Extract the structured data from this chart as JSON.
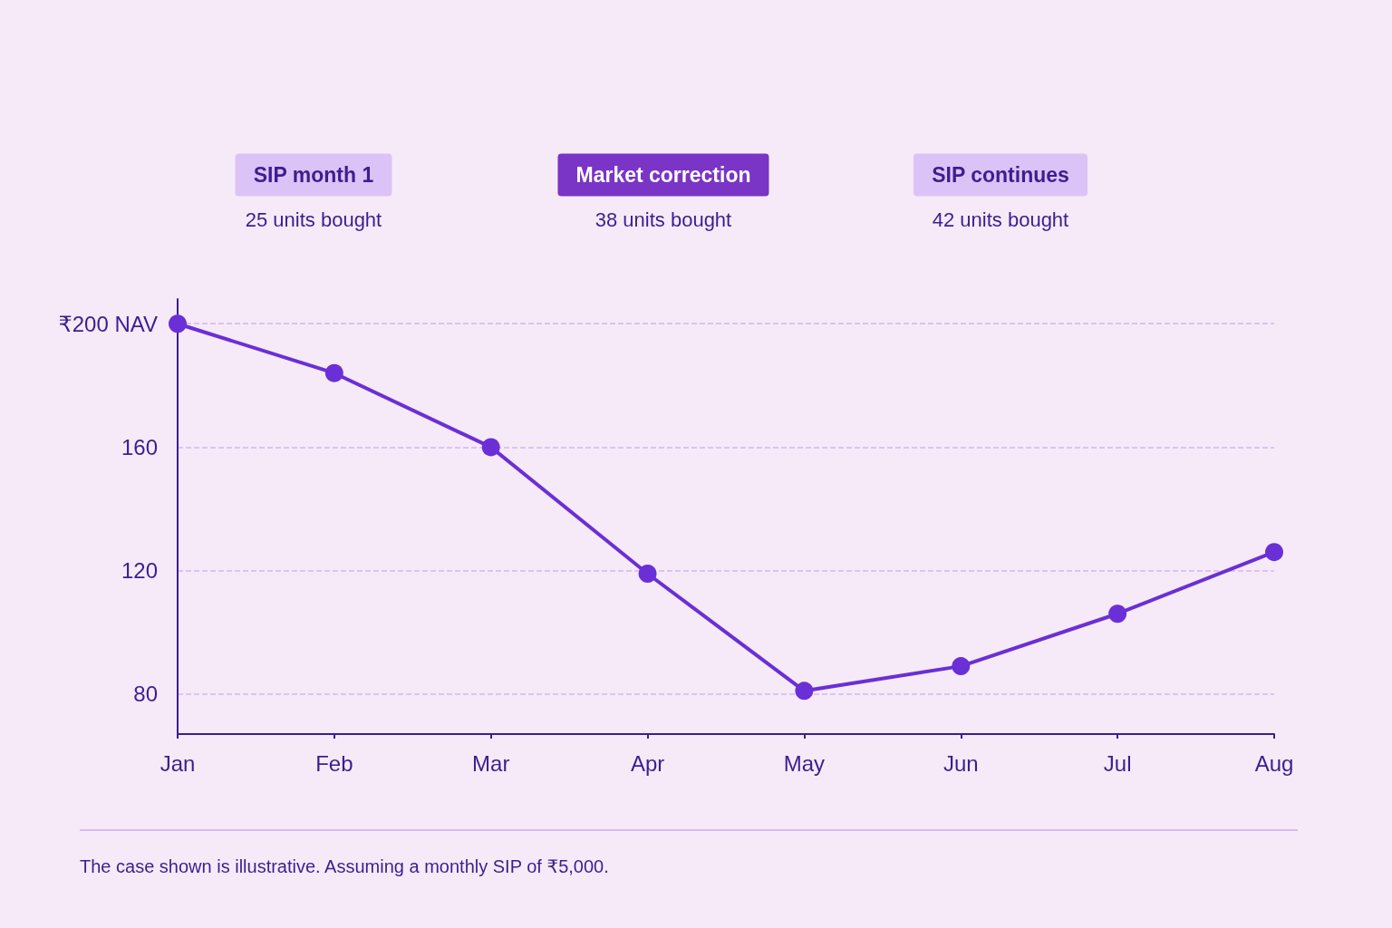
{
  "chart_data": {
    "type": "line",
    "categories": [
      "Jan",
      "Feb",
      "Mar",
      "Apr",
      "May",
      "Jun",
      "Jul",
      "Aug"
    ],
    "series": [
      {
        "color": "#6a2fd6",
        "values": [
          200,
          184,
          160,
          119,
          81,
          89,
          106,
          126
        ]
      }
    ],
    "ylim": [
      67,
      208
    ],
    "yticks": [
      80,
      120,
      160,
      {
        "value": 200,
        "label": "₹200 NAV"
      }
    ],
    "grid": "y",
    "marker": "circle",
    "line_style": "solid",
    "annotations": [
      "SIP month 1",
      "25 units bought",
      "Market correction",
      "38 units bought",
      "SIP continues",
      "42 units bought",
      "The case shown is illustrative. Assuming a monthly SIP of ₹5,000."
    ]
  }
}
